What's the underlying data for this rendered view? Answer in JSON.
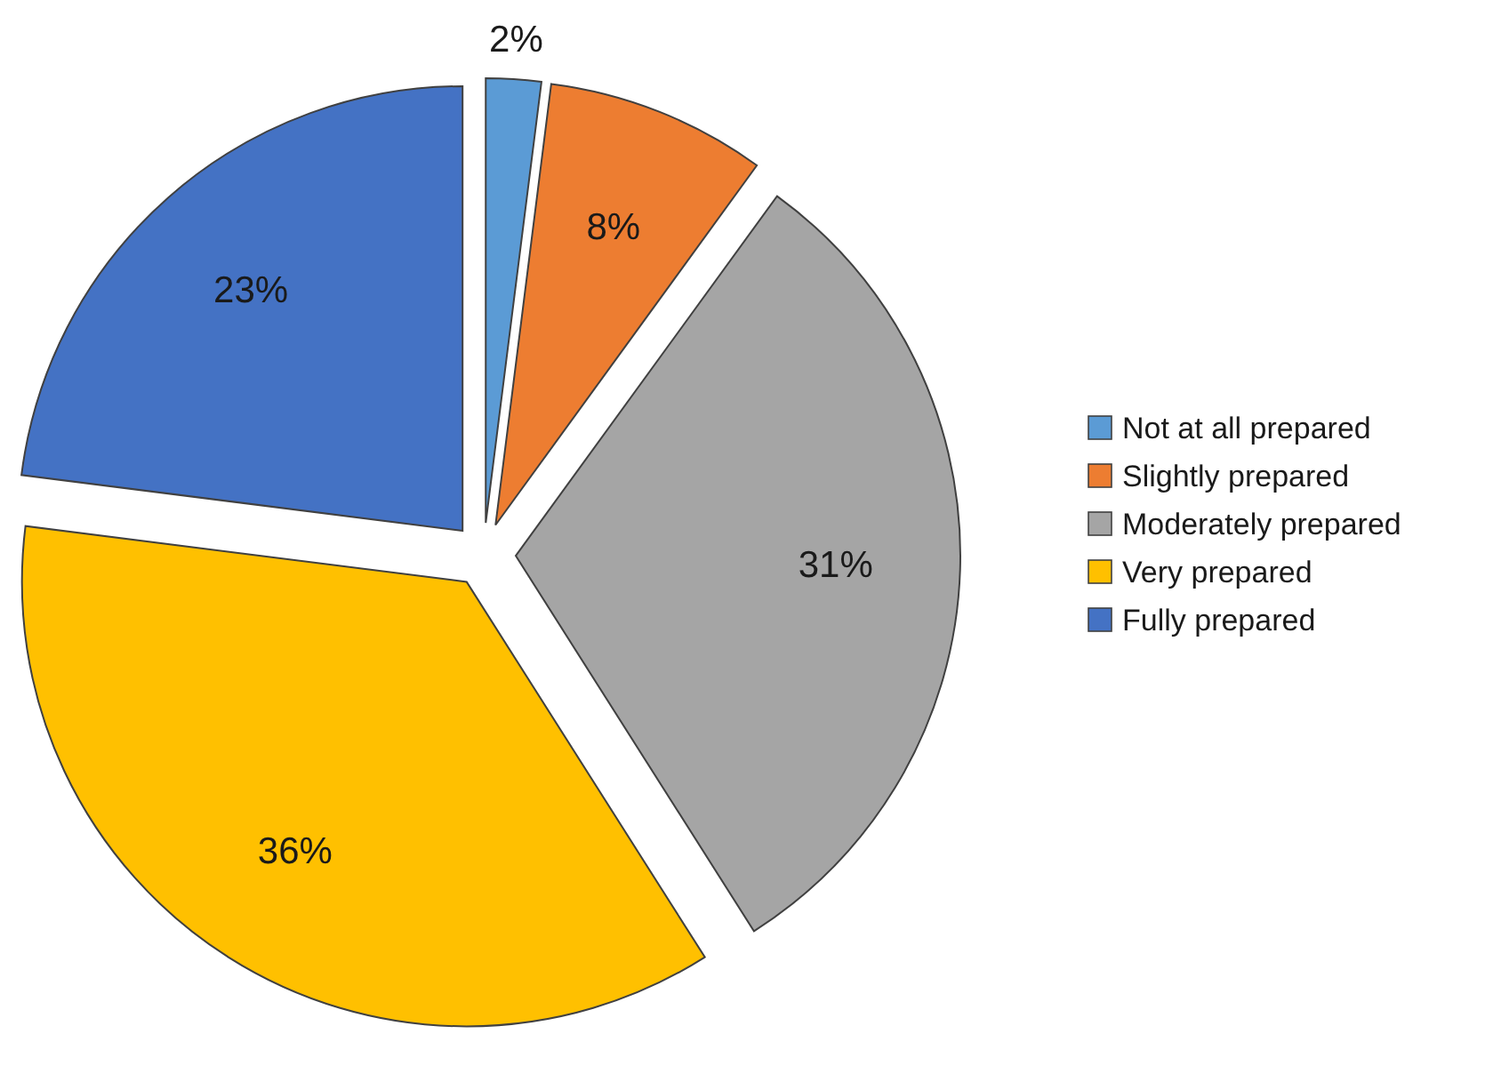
{
  "chart_data": {
    "type": "pie",
    "categories": [
      "Not at all prepared",
      "Slightly prepared",
      "Moderately prepared",
      "Very prepared",
      "Fully prepared"
    ],
    "values": [
      2,
      8,
      31,
      36,
      23
    ],
    "colors": [
      "#5b9bd5",
      "#ed7d31",
      "#a5a5a5",
      "#ffc000",
      "#4472c4"
    ],
    "value_labels": [
      "2%",
      "8%",
      "31%",
      "36%",
      "23%"
    ],
    "legend": "right"
  }
}
